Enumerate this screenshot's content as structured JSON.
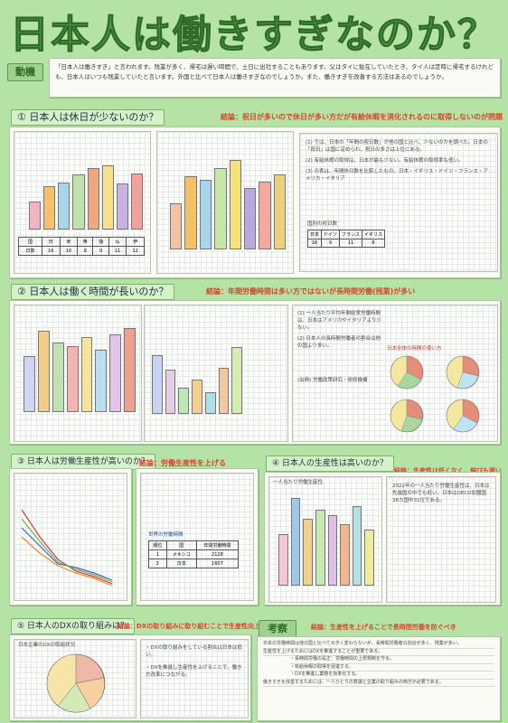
{
  "title": "日本人は働きすぎなのか？",
  "motive": {
    "tag": "動機",
    "text": "「日本人は働きすぎ」と言われます。残業が多く、帰宅は遅い時間で、土日に出社することもあります。父はタイに駐在していたとき、タイ人は定時に帰宅するけれども、日本人はいつも残業していたと言います。外国と比べて日本人は働きすぎなのでしょうか。また、働きすぎを改善する方法はあるのでしょうか。"
  },
  "s1": {
    "head": "① 日本人は休日が少ないのか？",
    "conclusion": "結論：祝日が多いので休日が多い方だが有給休暇を消化されるのに取得しないのが問題",
    "note1": "(1) では、日本の「年間の祝日数」が他の国と比べ、少ないのかを調べた。日本の「祝日」は国に定められ、祝日の多さは上位にある。",
    "note2": "(2) 有給休暇の取得は、日本が最も少ない。有給休暇の取得率も低い。",
    "note3": "(3) の表は、年間休日数を比較したもの。日本・イギリス・ドイツ・フランス・アメリカ・イタリア",
    "table_title": "国別の祝日数",
    "table_rows": [
      [
        "日本",
        "16"
      ],
      [
        "ドイツ",
        "9"
      ],
      [
        "フランス",
        "11"
      ],
      [
        "イギリス",
        "8"
      ]
    ]
  },
  "s2": {
    "head": "② 日本人は働く時間が長いのか？",
    "conclusion": "結論：年間労働時間は多い方ではないが長時間労働(残業)が多い",
    "note1": "(1) 一人当たり平均年間総実労働時間は、日本はアメリカやイタリアより少ない。",
    "note2": "(2) 日本人の長時間労働者の割合は他の国より多い。",
    "pie_title": "日本全体の時間の使い方",
    "source": "(出典) 労働政策研究・研修機構"
  },
  "s3": {
    "head": "③ 日本人は労働生産性が高いのか？",
    "conclusion": "結論：労働生産性を上げる",
    "table_title": "世界の労働時間",
    "table_rows": [
      [
        "順位",
        "国",
        "年間労働時間"
      ],
      [
        "1",
        "メキシコ",
        "2128"
      ],
      [
        "2",
        "日本",
        "1607"
      ]
    ]
  },
  "s4": {
    "head": "④ 日本人の生産性は高いのか？",
    "conclusion": "結論：生産性は低くなく、伸びも遅い",
    "chart_title": "一人当たり労働生産性",
    "note": "2022年の一人当たり労働生産性は、日本は先進国の中でも低い。日本はOECD加盟国38カ国中31位である。"
  },
  "s5": {
    "head": "⑤ 日本人のDXの取り組みは？",
    "conclusion": "結論：DXの取り組みに取り組むことで生産性向上の余地あり",
    "pie_title": "日本企業のDXの取組状況",
    "note1": "・DXの取り組みをしている割合は日本は低い。",
    "note2": "・DXを推進し生産性を上げることで、働き方改革につながる。"
  },
  "consider": {
    "tag": "考察",
    "conclusion": "結論：生産性を上げることで長時間労働を防ぐべき",
    "lines": [
      "日本の労働時間は他の国と比べて大きく変わらないが、長時間労働者の割合が多く、残業が多い。",
      "生産性を上げるためにはDXを推進することが重要である。",
      "・長時間労働の是正：労働時間の上限規制を守る。",
      "・有給休暇の取得を促進する。",
      "・DXを推進し業務を効率化する。",
      "働きすぎを改善するためには、一人ひとりの意識と企業の取り組みの両方が必要である。"
    ]
  },
  "colors": {
    "bg": "#b5e3a6",
    "title": "#4f9a41",
    "conclusion": "#d6452d"
  }
}
